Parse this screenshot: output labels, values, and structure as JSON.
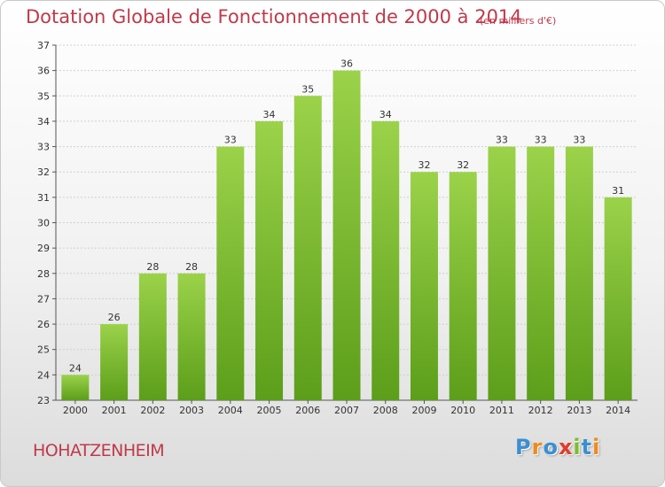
{
  "chart_data": {
    "type": "bar",
    "title": "Dotation Globale de Fonctionnement de 2000 à 2014",
    "subtitle": "(en milliers d'€)",
    "categories": [
      "2000",
      "2001",
      "2002",
      "2003",
      "2004",
      "2005",
      "2006",
      "2007",
      "2008",
      "2009",
      "2010",
      "2011",
      "2012",
      "2013",
      "2014"
    ],
    "values": [
      24,
      26,
      28,
      28,
      33,
      34,
      35,
      36,
      34,
      32,
      32,
      33,
      33,
      33,
      31
    ],
    "xlabel": "",
    "ylabel": "",
    "ylim": [
      23,
      37
    ],
    "yticks": [
      23,
      24,
      25,
      26,
      27,
      28,
      29,
      30,
      31,
      32,
      33,
      34,
      35,
      36,
      37
    ],
    "grid": true,
    "bar_color_top": "#9bd24a",
    "bar_color_bottom": "#5c9e1a"
  },
  "footer": {
    "commune": "HOHATZENHEIM",
    "brand": "Proxiti"
  },
  "colors": {
    "title": "#c0394a",
    "brand_letters": [
      "#3b8fd1",
      "#f08a1c",
      "#3b8fd1",
      "#e23c2a",
      "#7cbf2a",
      "#3b8fd1",
      "#f08a1c"
    ]
  }
}
